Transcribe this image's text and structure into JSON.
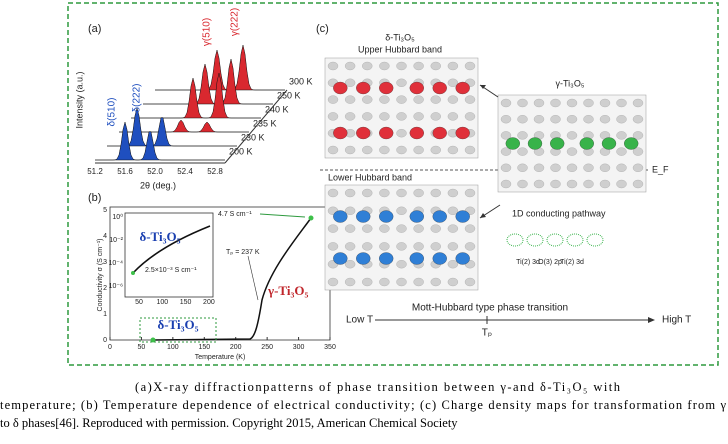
{
  "figure": {
    "panel_a": {
      "label": "(a)",
      "y_label": "Intensity (a.u.)",
      "x_label": "2θ (deg.)",
      "x_ticks": [
        "51.2",
        "51.6",
        "52.0",
        "52.4",
        "52.8"
      ],
      "temperatures": [
        "200 K",
        "230 K",
        "235 K",
        "240 K",
        "250 K",
        "300 K"
      ],
      "peaks": [
        "δ(510)",
        "δ(222)",
        "γ(510)",
        "γ(222)"
      ]
    },
    "panel_b": {
      "label": "(b)",
      "y_label": "Conductivity σ (S cm⁻¹)",
      "x_label": "Temperature (K)",
      "x_ticks": [
        "0",
        "50",
        "100",
        "150",
        "200",
        "250",
        "300",
        "350"
      ],
      "y_ticks": [
        "0",
        "1",
        "2",
        "3",
        "4",
        "5"
      ],
      "inset_x_ticks": [
        "50",
        "100",
        "150",
        "200"
      ],
      "inset_y_ticks": [
        "10⁰",
        "10⁻²",
        "10⁻⁴",
        "10⁻⁶"
      ],
      "inset_phase": "δ-Ti₃O₅",
      "high_value": "4.7 S cm⁻¹",
      "low_value": "2.5×10⁻³ S cm⁻¹",
      "transition": "Tₚ = 237 K",
      "gamma_phase": "γ-Ti₃O₅",
      "delta_phase": "δ-Ti₃O₅"
    },
    "panel_c": {
      "label": "(c)",
      "delta_title": "δ-Ti₃O₅",
      "upper": "Upper Hubbard band",
      "lower": "Lower Hubbard band",
      "gamma_title": "γ-Ti₃O₅",
      "fermi": "E_F",
      "pathway": "1D conducting pathway",
      "orbitals": [
        "Ti(2) 3d",
        "O(3) 2p",
        "Ti(2) 3d"
      ],
      "arrow_title": "Mott-Hubbard type phase transition",
      "low": "Low T",
      "high": "High T",
      "tp": "Tₚ"
    },
    "caption": [
      "(a)X-ray diffractionpatterns of phase transition between γ-and δ-Ti₃O₅ with",
      "temperature; (b) Temperature dependence of electrical conductivity; (c) Charge density maps for transformation from γ",
      "to δ phases[46]. Reproduced with permission. Copyright 2015, American Chemical Society"
    ]
  }
}
